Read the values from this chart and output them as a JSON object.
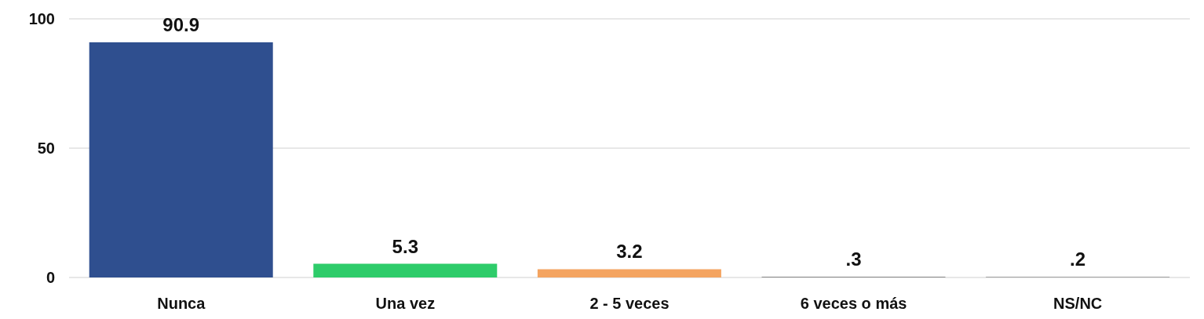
{
  "chart_data": {
    "type": "bar",
    "categories": [
      "Nunca",
      "Una vez",
      "2 - 5 veces",
      "6 veces o más",
      "NS/NC"
    ],
    "values": [
      90.9,
      5.3,
      3.2,
      0.3,
      0.2
    ],
    "colors": [
      "#2f4f8f",
      "#2ecc6a",
      "#f4a460",
      "#8a8a8a",
      "#8a8a8a"
    ],
    "value_labels": [
      "90.9",
      "5.3",
      "3.2",
      ".3",
      ".2"
    ],
    "ylim": [
      0,
      100
    ],
    "yticks": [
      0,
      50,
      100
    ],
    "grid": "y"
  }
}
